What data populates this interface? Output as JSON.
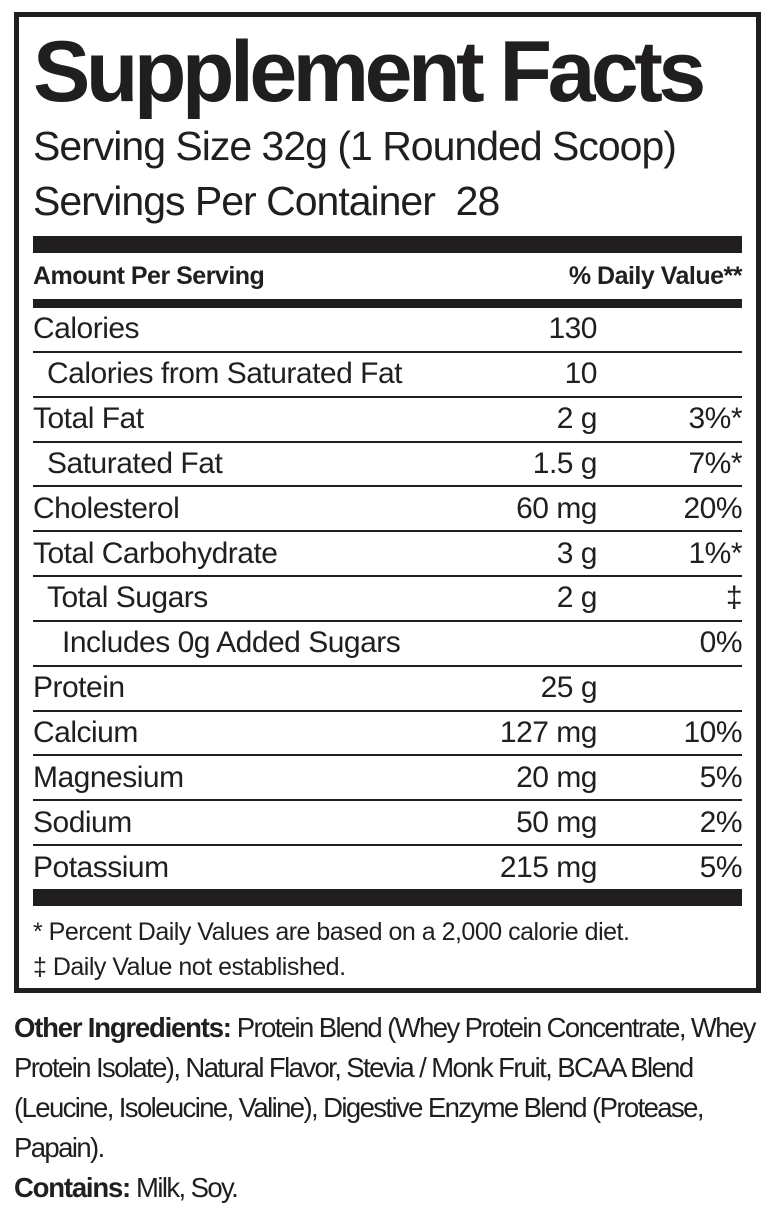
{
  "colors": {
    "ink": "#211e1f",
    "background": "#ffffff"
  },
  "panel": {
    "title": "Supplement Facts",
    "serving_size": "Serving Size 32g (1 Rounded Scoop)",
    "servings_per_container": "Servings Per Container  28",
    "header": {
      "amount_label": "Amount Per Serving",
      "dv_label": "% Daily Value**"
    },
    "rows": [
      {
        "name": "Calories",
        "amount": "130",
        "dv": "",
        "indent": 0
      },
      {
        "name": "Calories from Saturated Fat",
        "amount": "10",
        "dv": "",
        "indent": 1
      },
      {
        "name": "Total Fat",
        "amount": "2 g",
        "dv": "3%*",
        "indent": 0
      },
      {
        "name": "Saturated Fat",
        "amount": "1.5 g",
        "dv": "7%*",
        "indent": 1
      },
      {
        "name": "Cholesterol",
        "amount": "60 mg",
        "dv": "20%",
        "indent": 0
      },
      {
        "name": "Total Carbohydrate",
        "amount": "3 g",
        "dv": "1%*",
        "indent": 0
      },
      {
        "name": "Total Sugars",
        "amount": "2 g",
        "dv": "‡",
        "indent": 1
      },
      {
        "name": "Includes 0g Added Sugars",
        "amount": "",
        "dv": "0%",
        "indent": 2
      },
      {
        "name": "Protein",
        "amount": "25 g",
        "dv": "",
        "indent": 0
      },
      {
        "name": "Calcium",
        "amount": "127 mg",
        "dv": "10%",
        "indent": 0
      },
      {
        "name": "Magnesium",
        "amount": "20 mg",
        "dv": "5%",
        "indent": 0
      },
      {
        "name": "Sodium",
        "amount": "50 mg",
        "dv": "2%",
        "indent": 0
      },
      {
        "name": "Potassium",
        "amount": "215 mg",
        "dv": "5%",
        "indent": 0
      }
    ],
    "footnotes": [
      "* Percent Daily Values are based on a 2,000 calorie diet.",
      "‡ Daily Value not established."
    ]
  },
  "ingredients": {
    "other_label": "Other Ingredients:",
    "other_text": " Protein Blend (Whey Protein Concentrate, Whey Protein Isolate), Natural Flavor, Stevia / Monk Fruit, BCAA Blend (Leucine, Isoleucine, Valine), Digestive Enzyme Blend (Protease, Papain).",
    "contains_label": "Contains:",
    "contains_text": " Milk, Soy."
  }
}
